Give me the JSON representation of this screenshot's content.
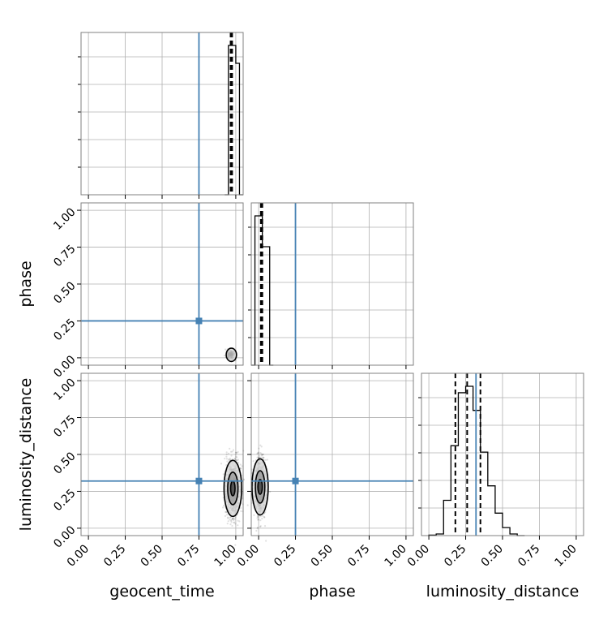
{
  "chart_data": {
    "type": "corner",
    "parameters": [
      "geocent_time",
      "phase",
      "luminosity_distance"
    ],
    "axis_range": [
      -0.05,
      1.05
    ],
    "ticks": [
      0.0,
      0.25,
      0.5,
      0.75,
      1.0
    ],
    "tick_labels": [
      "0.00",
      "0.25",
      "0.50",
      "0.75",
      "1.00"
    ],
    "truths": {
      "geocent_time": 0.75,
      "phase": 0.25,
      "luminosity_distance": 0.32
    },
    "truth_color": "#4682b4",
    "grid": true,
    "histograms": {
      "geocent_time": {
        "edges": [
          0.925,
          0.95,
          0.975,
          1.0,
          1.025,
          1.05
        ],
        "counts": [
          0.0,
          0.92,
          0.92,
          0.81,
          0.0
        ],
        "quantiles": [
          0.965,
          0.97,
          0.975
        ]
      },
      "phase": {
        "edges": [
          -0.05,
          -0.025,
          0.0,
          0.025,
          0.05,
          0.075,
          0.1
        ],
        "counts": [
          0.0,
          0.92,
          0.92,
          0.73,
          0.73,
          0.0
        ],
        "quantiles": [
          0.015,
          0.02,
          0.025
        ]
      },
      "luminosity_distance": {
        "edges": [
          0.0,
          0.05,
          0.1,
          0.15,
          0.2,
          0.25,
          0.3,
          0.35,
          0.4,
          0.45,
          0.5,
          0.55,
          0.6,
          0.65
        ],
        "counts": [
          0.003,
          0.01,
          0.22,
          0.56,
          0.89,
          0.93,
          0.78,
          0.52,
          0.31,
          0.14,
          0.05,
          0.01,
          0.0
        ],
        "quantiles": [
          0.18,
          0.26,
          0.35
        ]
      }
    },
    "scatter_panels": [
      {
        "x": "geocent_time",
        "y": "phase",
        "center": [
          0.965,
          0.02
        ],
        "spread": [
          0.015,
          0.015
        ],
        "contours": [
          [
            0.97,
            0.02,
            0.035,
            0.045
          ]
        ]
      },
      {
        "x": "geocent_time",
        "y": "luminosity_distance",
        "center": [
          0.98,
          0.27
        ],
        "spread": [
          0.025,
          0.1
        ],
        "contours": [
          [
            0.98,
            0.27,
            0.06,
            0.19
          ],
          [
            0.98,
            0.27,
            0.035,
            0.11
          ],
          [
            0.98,
            0.27,
            0.015,
            0.05
          ]
        ]
      },
      {
        "x": "phase",
        "y": "luminosity_distance",
        "center": [
          0.01,
          0.28
        ],
        "spread": [
          0.02,
          0.1
        ],
        "contours": [
          [
            0.01,
            0.28,
            0.055,
            0.19
          ],
          [
            0.01,
            0.28,
            0.032,
            0.11
          ],
          [
            0.01,
            0.28,
            0.015,
            0.05
          ]
        ]
      }
    ]
  }
}
